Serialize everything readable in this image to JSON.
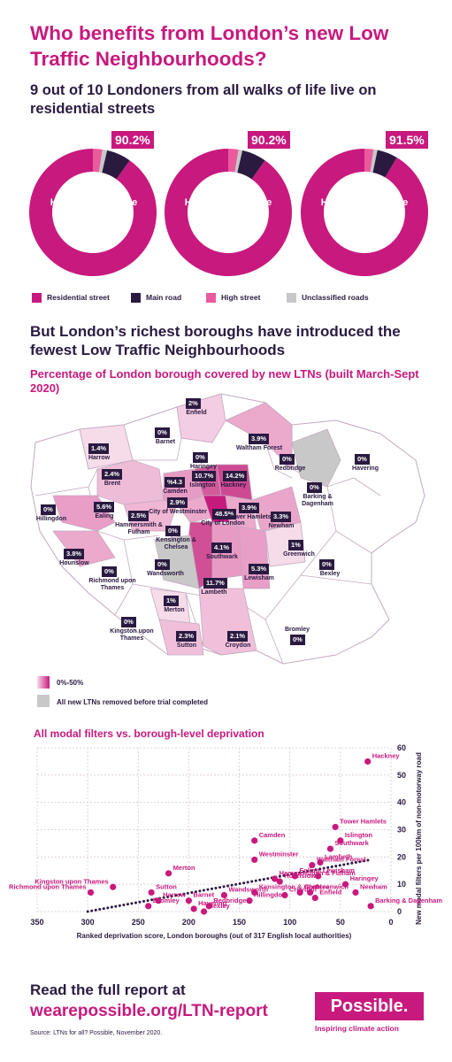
{
  "headline": "Who benefits from London’s new Low Traffic Neighbourhoods?",
  "subhead": "9 out of 10 Londoners from all walks of life live on residential streets",
  "donuts": [
    {
      "pct": "90.2%",
      "label": "Household income less than £20k",
      "residential": 90.2,
      "high": 2.4,
      "unclassified": 1.2,
      "main": 6.2
    },
    {
      "pct": "90.2%",
      "label": "Household income £20k–£49k",
      "residential": 90.2,
      "high": 2.6,
      "unclassified": 1.0,
      "main": 6.2
    },
    {
      "pct": "91.5%",
      "label": "Household income £50k+",
      "residential": 91.5,
      "high": 2.3,
      "unclassified": 1.0,
      "main": 5.2
    }
  ],
  "legend": {
    "residential": "Residential street",
    "main": "Main road",
    "high": "High street",
    "unclassified": "Unclassified roads"
  },
  "colors": {
    "residential": "#c8197e",
    "main": "#2a1a40",
    "high": "#ea5b9d",
    "unclassified": "#c8c8c8",
    "accent": "#c8197e",
    "dark": "#2a1a40"
  },
  "section2": "But London’s richest boroughs have introduced the fewest Low Traffic Neighbourhoods",
  "map_title": "Percentage of London borough covered by new LTNs (built March-Sept 2020)",
  "map_legend": {
    "range": "0%-50%",
    "removed": "All new LTNs removed before trial completed"
  },
  "boroughs": [
    {
      "name": "Enfield",
      "pct": "2%"
    },
    {
      "name": "Barnet",
      "pct": "0%"
    },
    {
      "name": "Harrow",
      "pct": "1.4%"
    },
    {
      "name": "Waltham Forest",
      "pct": "3.9%"
    },
    {
      "name": "Haringey",
      "pct": "0%"
    },
    {
      "name": "Redbridge",
      "pct": "0%"
    },
    {
      "name": "Havering",
      "pct": "0%"
    },
    {
      "name": "Brent",
      "pct": "2.4%"
    },
    {
      "name": "Camden",
      "pct": "%4.3"
    },
    {
      "name": "Islington",
      "pct": "10.7%"
    },
    {
      "name": "Hackney",
      "pct": "14.2%"
    },
    {
      "name": "Barking & Dagenham",
      "pct": "0%"
    },
    {
      "name": "Hillingdon",
      "pct": "0%"
    },
    {
      "name": "Ealing",
      "pct": "5.6%"
    },
    {
      "name": "City of Westminster",
      "pct": "2.9%"
    },
    {
      "name": "Hammersmith & Fulham",
      "pct": "2.5%"
    },
    {
      "name": "City of London",
      "pct": "48.5%"
    },
    {
      "name": "Tower Hamlets",
      "pct": "3.9%"
    },
    {
      "name": "Newham",
      "pct": "3.3%"
    },
    {
      "name": "Kensington & Chelsea",
      "pct": "0%"
    },
    {
      "name": "Hounslow",
      "pct": "3.8%"
    },
    {
      "name": "Greenwich",
      "pct": "1%"
    },
    {
      "name": "Richmond upon Thames",
      "pct": "0%"
    },
    {
      "name": "Wandsworth",
      "pct": "0%"
    },
    {
      "name": "Southwark",
      "pct": "4.1%"
    },
    {
      "name": "Lewisham",
      "pct": "5.3%"
    },
    {
      "name": "Bexley",
      "pct": "0%"
    },
    {
      "name": "Lambeth",
      "pct": "11.7%"
    },
    {
      "name": "Merton",
      "pct": "1%"
    },
    {
      "name": "Kingston upon Thames",
      "pct": "0%"
    },
    {
      "name": "Sutton",
      "pct": "2.3%"
    },
    {
      "name": "Croydon",
      "pct": "2.1%"
    },
    {
      "name": "Bromley",
      "pct": "0%"
    }
  ],
  "chart_data": {
    "type": "scatter",
    "title": "All modal filters vs. borough-level deprivation",
    "xlabel": "Ranked deprivation score, London boroughs (out of 317 English local authorities)",
    "ylabel": "New modal filters per 100km of non-motorway road",
    "xlim": [
      350,
      0
    ],
    "ylim": [
      0,
      60
    ],
    "xticks": [
      350,
      300,
      250,
      200,
      150,
      100,
      50,
      0
    ],
    "yticks": [
      0,
      10,
      20,
      30,
      40,
      50,
      60
    ],
    "grid": true,
    "trendline": {
      "x": [
        300,
        20
      ],
      "y": [
        0,
        19
      ]
    },
    "points": [
      {
        "label": "Hackney",
        "x": 23,
        "y": 55
      },
      {
        "label": "Tower Hamlets",
        "x": 55,
        "y": 31
      },
      {
        "label": "Islington",
        "x": 50,
        "y": 26
      },
      {
        "label": "Southwark",
        "x": 60,
        "y": 23
      },
      {
        "label": "Camden",
        "x": 135,
        "y": 26
      },
      {
        "label": "Westminster",
        "x": 135,
        "y": 19
      },
      {
        "label": "Waltham Forest",
        "x": 78,
        "y": 17
      },
      {
        "label": "Lambeth",
        "x": 70,
        "y": 18
      },
      {
        "label": "Hammersmith & Fulham",
        "x": 115,
        "y": 12
      },
      {
        "label": "Ealing",
        "x": 95,
        "y": 13
      },
      {
        "label": "Lewisham",
        "x": 72,
        "y": 13
      },
      {
        "label": "Kingston upon Thames",
        "x": 275,
        "y": 9
      },
      {
        "label": "Merton",
        "x": 220,
        "y": 14
      },
      {
        "label": "Richmond upon Thames",
        "x": 297,
        "y": 7
      },
      {
        "label": "Sutton",
        "x": 237,
        "y": 7
      },
      {
        "label": "Harrow",
        "x": 230,
        "y": 4
      },
      {
        "label": "Bromley",
        "x": 240,
        "y": 2
      },
      {
        "label": "Barnet",
        "x": 200,
        "y": 4
      },
      {
        "label": "Havering",
        "x": 195,
        "y": 1
      },
      {
        "label": "Redbridge",
        "x": 180,
        "y": 2
      },
      {
        "label": "Bexley",
        "x": 185,
        "y": 0
      },
      {
        "label": "Wandsworth",
        "x": 165,
        "y": 6
      },
      {
        "label": "Hillingdon",
        "x": 140,
        "y": 4
      },
      {
        "label": "Kensington & Chelsea",
        "x": 135,
        "y": 7
      },
      {
        "label": "Hounslow",
        "x": 110,
        "y": 11
      },
      {
        "label": "Croydon",
        "x": 105,
        "y": 6
      },
      {
        "label": "Brent",
        "x": 90,
        "y": 7
      },
      {
        "label": "Greenwich",
        "x": 80,
        "y": 7
      },
      {
        "label": "Enfield",
        "x": 75,
        "y": 5
      },
      {
        "label": "Haringey",
        "x": 45,
        "y": 10
      },
      {
        "label": "Newham",
        "x": 35,
        "y": 7
      },
      {
        "label": "Barking & Dagenham",
        "x": 20,
        "y": 2
      }
    ]
  },
  "footer": {
    "cta1": "Read the full report at",
    "cta2": "wearepossible.org/LTN-report",
    "source": "Source: LTNs for all? Possible, November 2020.",
    "logo": "Possible.",
    "tagline": "Inspiring climate action"
  }
}
